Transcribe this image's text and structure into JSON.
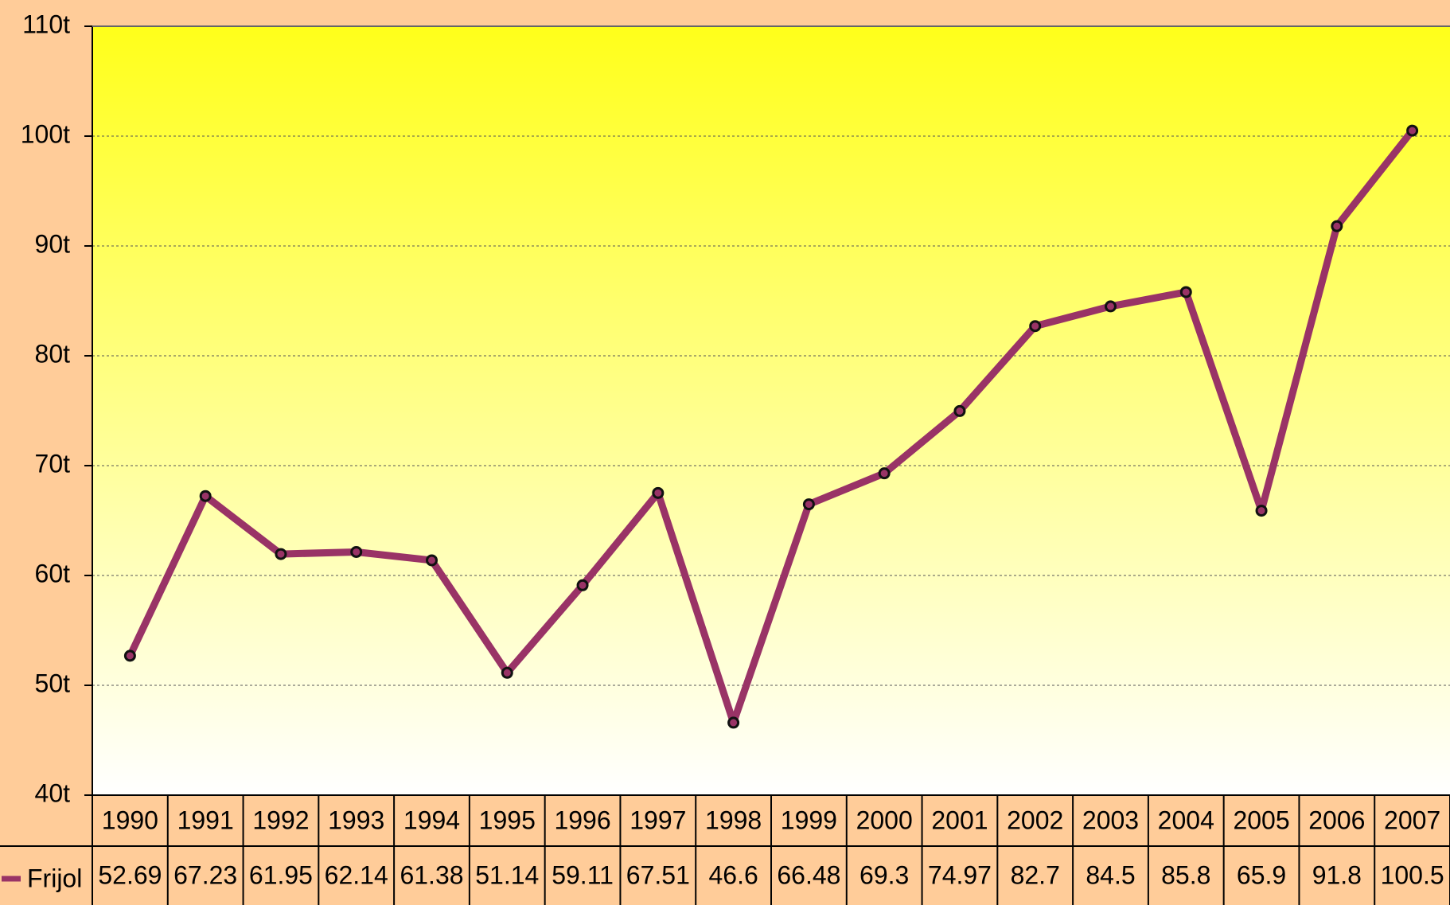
{
  "chart_data": {
    "type": "line",
    "categories": [
      "1990",
      "1991",
      "1992",
      "1993",
      "1994",
      "1995",
      "1996",
      "1997",
      "1998",
      "1999",
      "2000",
      "2001",
      "2002",
      "2003",
      "2004",
      "2005",
      "2006",
      "2007"
    ],
    "series": [
      {
        "name": "Frijol",
        "color": "#993366",
        "values": [
          52.69,
          67.23,
          61.95,
          62.14,
          61.38,
          51.14,
          59.11,
          67.51,
          46.6,
          66.48,
          69.3,
          74.97,
          82.7,
          84.5,
          85.8,
          65.9,
          91.8,
          100.5
        ]
      }
    ],
    "ylim": [
      40,
      110
    ],
    "yticks": [
      {
        "value": 40,
        "label": "40t"
      },
      {
        "value": 50,
        "label": "50t"
      },
      {
        "value": 60,
        "label": "60t"
      },
      {
        "value": 70,
        "label": "70t"
      },
      {
        "value": 80,
        "label": "80t"
      },
      {
        "value": 90,
        "label": "90t"
      },
      {
        "value": 100,
        "label": "100t"
      },
      {
        "value": 110,
        "label": "110t"
      }
    ],
    "grid": true,
    "data_table": true
  }
}
